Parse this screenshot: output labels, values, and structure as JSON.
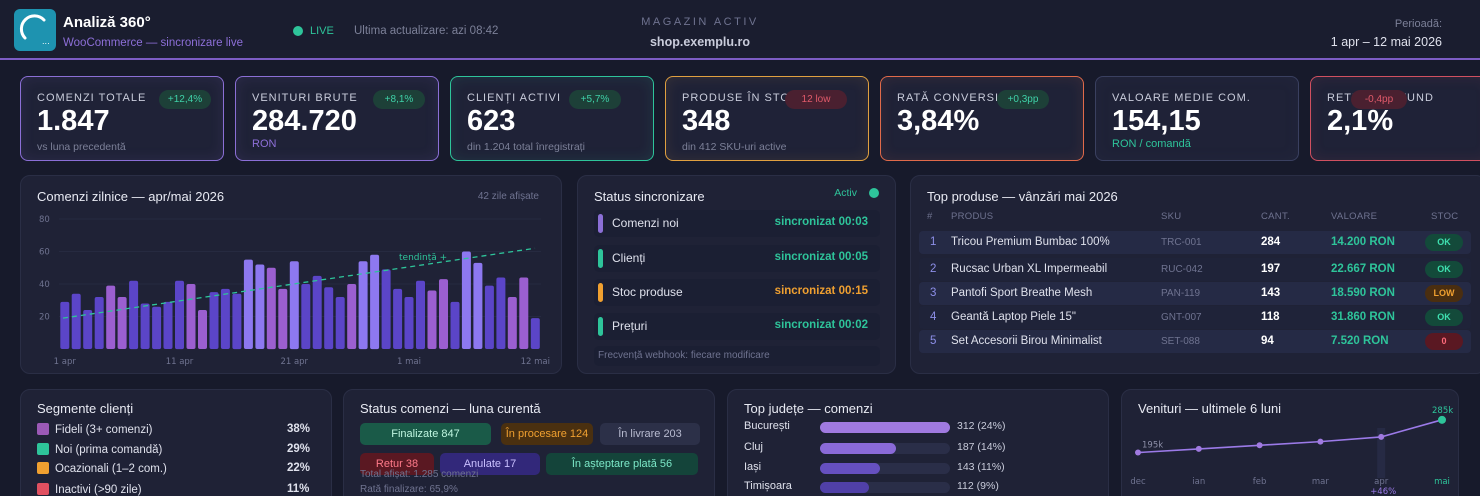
{
  "header": {
    "title": "Analiză 360°",
    "subtitle": "WooCommerce — sincronizare live",
    "live_label": "LIVE",
    "last_update": "Ultima actualizare: azi 08:42",
    "store_label": "MAGAZIN ACTIV",
    "store_domain": "shop.exemplu.ro",
    "period_label": "Perioadă:",
    "period_value": "1 apr – 12 mai 2026"
  },
  "kpis": [
    {
      "label": "COMENZI TOTALE",
      "value": "1.847",
      "sub": "vs luna precedentă",
      "badge": "+12,4%",
      "accent": "#8b6fd6"
    },
    {
      "label": "VENITURI BRUTE",
      "value": "284.720",
      "sub": "RON",
      "badge": "+8,1%",
      "accent": "#8b6fd6"
    },
    {
      "label": "CLIENȚI ACTIVI",
      "value": "623",
      "sub": "din 1.204 total înregistrați",
      "badge": "+5,7%",
      "accent": "#2ec49a"
    },
    {
      "label": "PRODUSE ÎN STOC",
      "value": "348",
      "sub": "din 412 SKU-uri active",
      "badge": "12 low",
      "accent": "#e0a040"
    },
    {
      "label": "RATĂ CONVERSIE",
      "value": "3,84%",
      "sub": "",
      "badge": "+0,3pp",
      "accent": "#e06a4a"
    },
    {
      "label": "VALOARE MEDIE COM.",
      "value": "154,15",
      "sub": "RON / comandă",
      "badge": "",
      "accent": "#3a4060"
    },
    {
      "label": "RETUR / REFUND",
      "value": "2,1%",
      "sub": "",
      "badge": "-0,4pp",
      "accent": "#d05060"
    }
  ],
  "orders_chart": {
    "title": "Comenzi zilnice — apr/mai 2026",
    "days_shown": "42 zile afișate",
    "trend_label": "tendință +",
    "yticks": [
      "80",
      "60",
      "40",
      "20"
    ],
    "xticks": [
      "1 apr",
      "11 apr",
      "21 apr",
      "1 mai",
      "12 mai"
    ]
  },
  "chart_data": {
    "type": "bar",
    "ylim": [
      0,
      80
    ],
    "categories": [
      "1 apr",
      "2 apr",
      "3 apr",
      "4 apr",
      "5 apr",
      "6 apr",
      "7 apr",
      "8 apr",
      "9 apr",
      "10 apr",
      "11 apr",
      "12 apr",
      "13 apr",
      "14 apr",
      "15 apr",
      "16 apr",
      "17 apr",
      "18 apr",
      "19 apr",
      "20 apr",
      "21 apr",
      "22 apr",
      "23 apr",
      "24 apr",
      "25 apr",
      "26 apr",
      "27 apr",
      "28 apr",
      "29 apr",
      "30 apr",
      "1 mai",
      "2 mai",
      "3 mai",
      "4 mai",
      "5 mai",
      "6 mai",
      "7 mai",
      "8 mai",
      "9 mai",
      "10 mai",
      "11 mai",
      "12 mai"
    ],
    "values": [
      29,
      34,
      24,
      32,
      39,
      32,
      42,
      28,
      26,
      29,
      42,
      40,
      24,
      35,
      37,
      34,
      55,
      52,
      50,
      37,
      54,
      40,
      45,
      38,
      32,
      40,
      54,
      58,
      49,
      37,
      32,
      42,
      36,
      43,
      29,
      60,
      53,
      39,
      44,
      32,
      44,
      19
    ],
    "trend": {
      "from": 19,
      "to": 62,
      "label": "tendință +"
    }
  },
  "sync": {
    "title": "Status sincronizare",
    "state": "Activ",
    "rows": [
      {
        "name": "Comenzi noi",
        "status": "sincronizat 00:03",
        "color": "#8b6fd6",
        "status_color": "#2ec49a"
      },
      {
        "name": "Clienți",
        "status": "sincronizat 00:05",
        "color": "#2ec49a",
        "status_color": "#2ec49a"
      },
      {
        "name": "Stoc produse",
        "status": "sincronizat 00:15",
        "color": "#f0a030",
        "status_color": "#f0a030"
      },
      {
        "name": "Prețuri",
        "status": "sincronizat 00:02",
        "color": "#2ec49a",
        "status_color": "#2ec49a"
      }
    ],
    "footer": "Frecvență webhook: fiecare modificare"
  },
  "top_products": {
    "title": "Top produse — vânzări mai 2026",
    "headers": [
      "#",
      "PRODUS",
      "SKU",
      "CANT.",
      "VALOARE",
      "STOC"
    ],
    "rows": [
      {
        "n": "1",
        "name": "Tricou Premium Bumbac 100%",
        "sku": "TRC-001",
        "qty": "284",
        "value": "14.200 RON",
        "stock": "OK"
      },
      {
        "n": "2",
        "name": "Rucsac Urban XL Impermeabil",
        "sku": "RUC-042",
        "qty": "197",
        "value": "22.667 RON",
        "stock": "OK"
      },
      {
        "n": "3",
        "name": "Pantofi Sport Breathe Mesh",
        "sku": "PAN-119",
        "qty": "143",
        "value": "18.590 RON",
        "stock": "LOW"
      },
      {
        "n": "4",
        "name": "Geantă Laptop Piele 15\"",
        "sku": "GNT-007",
        "qty": "118",
        "value": "31.860 RON",
        "stock": "OK"
      },
      {
        "n": "5",
        "name": "Set Accesorii Birou Minimalist",
        "sku": "SET-088",
        "qty": "94",
        "value": "7.520 RON",
        "stock": "0"
      }
    ]
  },
  "segments": {
    "title": "Segmente clienți",
    "items": [
      {
        "label": "Fideli (3+ comenzi)",
        "pct": "38%",
        "color": "#9b59b6"
      },
      {
        "label": "Noi (prima comandă)",
        "pct": "29%",
        "color": "#2ec49a"
      },
      {
        "label": "Ocazionali (1–2 com.)",
        "pct": "22%",
        "color": "#f0a030"
      },
      {
        "label": "Inactivi (>90 zile)",
        "pct": "11%",
        "color": "#e05060"
      }
    ]
  },
  "order_status": {
    "title": "Status comenzi — luna curentă",
    "chips": [
      {
        "label": "Finalizate 847"
      },
      {
        "label": "În procesare 124"
      },
      {
        "label": "În livrare 203"
      },
      {
        "label": "Retur 38"
      },
      {
        "label": "Anulate 17"
      },
      {
        "label": "În așteptare plată 56"
      }
    ],
    "total": "Total afișat: 1.285 comenzi",
    "rate": "Rată finalizare: 65,9%"
  },
  "counties": {
    "title": "Top județe — comenzi",
    "rows": [
      {
        "name": "București",
        "value": "312 (24%)",
        "fill": 0.24,
        "color": "#a07ae0"
      },
      {
        "name": "Cluj",
        "value": "187 (14%)",
        "fill": 0.14,
        "color": "#8a6ad8"
      },
      {
        "name": "Iași",
        "value": "143 (11%)",
        "fill": 0.11,
        "color": "#6650c0"
      },
      {
        "name": "Timișoara",
        "value": "112 (9%)",
        "fill": 0.09,
        "color": "#5040a8"
      }
    ]
  },
  "revenue": {
    "title": "Venituri — ultimele 6 luni",
    "months": [
      "dec",
      "ian",
      "feb",
      "mar",
      "apr",
      "mai"
    ],
    "values": [
      195,
      205,
      215,
      225,
      238,
      285
    ],
    "first_label": "195k",
    "last_label": "285k",
    "growth": "+46%"
  }
}
